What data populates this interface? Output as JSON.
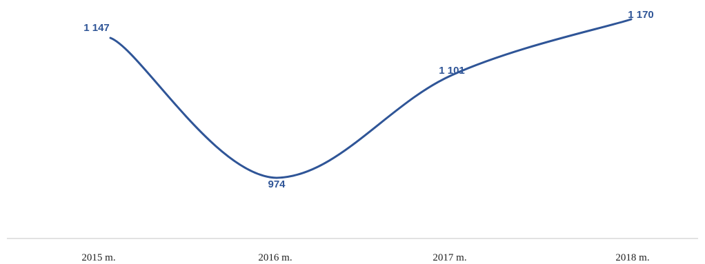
{
  "chart_data": {
    "type": "line",
    "title": "",
    "xlabel": "",
    "ylabel": "",
    "categories": [
      "2015 m.",
      "2016 m.",
      "2017 m.",
      "2018 m."
    ],
    "series": [
      {
        "values": [
          1147,
          974,
          1101,
          1170
        ],
        "data_labels": [
          "1 147",
          "974",
          "1 101",
          "1 170"
        ],
        "color": "#2f5597"
      }
    ],
    "grid": false,
    "legend": "none",
    "axis_line_color": "#d9d9d9",
    "label_color": "#2f5597"
  }
}
